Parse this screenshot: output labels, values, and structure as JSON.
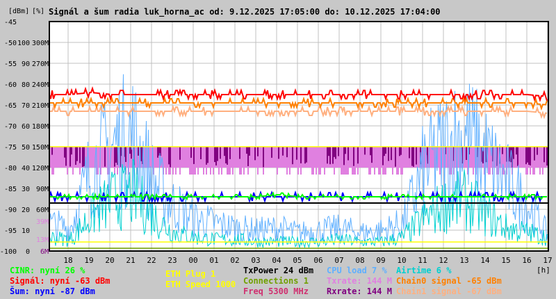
{
  "chart_data": {
    "type": "line",
    "title": "Signál a šum radia luk_horna_ac od: 9.12.2025 17:05:00 do: 10.12.2025 17:04:00",
    "y_units": [
      "[dBm]",
      "[%]"
    ],
    "y_axis_dbm": {
      "range": [
        -100,
        -45
      ],
      "ticks": [
        "-45",
        "-50",
        "-55",
        "-60",
        "-65",
        "-70",
        "-75",
        "-80",
        "-85",
        "-90",
        "-95",
        "-100"
      ]
    },
    "y_axis_percent": {
      "range": [
        0,
        100
      ],
      "ticks": [
        "100",
        "90",
        "80",
        "70",
        "60",
        "50",
        "40",
        "30",
        "20",
        "10",
        "0"
      ]
    },
    "y_axis_rate": {
      "range": [
        0,
        300
      ],
      "ticks": [
        "300M",
        "270M",
        "240M",
        "210M",
        "180M",
        "150M",
        "120M",
        "90M",
        "60M"
      ]
    },
    "rate_markers": [
      {
        "label": "39M",
        "color": "#e080e0"
      },
      {
        "label": "13M",
        "color": "#e080e0"
      },
      {
        "label": "6M",
        "color": "#800080"
      }
    ],
    "x_ticks": [
      "18",
      "19",
      "20",
      "21",
      "22",
      "23",
      "00",
      "01",
      "02",
      "03",
      "04",
      "05",
      "06",
      "07",
      "08",
      "09",
      "10",
      "11",
      "12",
      "13",
      "14",
      "15",
      "16",
      "17"
    ],
    "x_unit": "[h]",
    "grid": true,
    "series": [
      {
        "name": "Signál",
        "axis": "dbm",
        "color": "#ff0000",
        "values": [
          -62.5,
          -62.5,
          -62,
          -62.5,
          -62.5,
          -62.5,
          -62.5,
          -62.5,
          -62.5,
          -62.5,
          -62.5,
          -62.5,
          -62.5,
          -62.5,
          -62.5,
          -62.5,
          -62.5,
          -62.5,
          -62.5,
          -62.5,
          -62.5,
          -62.5,
          -62.5,
          -62.5,
          -63
        ]
      },
      {
        "name": "Chain0 signal",
        "axis": "dbm",
        "color": "#ff8000",
        "values": [
          -64.5,
          -64.5,
          -64.5,
          -64.5,
          -64.5,
          -64.5,
          -64.5,
          -64.5,
          -64.5,
          -64.5,
          -64.5,
          -64.5,
          -64.5,
          -64.5,
          -64.5,
          -64.5,
          -64.5,
          -64.5,
          -64.5,
          -64.5,
          -64.5,
          -64.5,
          -64.5,
          -64.5,
          -65
        ]
      },
      {
        "name": "Chain1 signal",
        "axis": "dbm",
        "color": "#ffb080",
        "values": [
          -66.5,
          -66.5,
          -66.5,
          -66.5,
          -66.5,
          -66.5,
          -66.5,
          -66.5,
          -66.5,
          -66.5,
          -66.5,
          -66.5,
          -66.5,
          -66.5,
          -66.5,
          -66.5,
          -66.5,
          -66.5,
          -66.5,
          -66.5,
          -66.5,
          -66.5,
          -66.5,
          -66.5,
          -67
        ]
      },
      {
        "name": "Šum",
        "axis": "dbm",
        "color": "#0000ff",
        "values": [
          -87,
          -87,
          -87,
          -87,
          -87,
          -87,
          -87,
          -87,
          -87,
          -87,
          -87,
          -87,
          -87,
          -87,
          -87,
          -87,
          -87,
          -87,
          -87,
          -87,
          -87,
          -87,
          -87,
          -87,
          -87
        ]
      },
      {
        "name": "CINR",
        "axis": "percent",
        "color": "#00ff00",
        "values": [
          26,
          26,
          26,
          26,
          26,
          26,
          26,
          26,
          26,
          26,
          26,
          27,
          26,
          26,
          26,
          26,
          26,
          26,
          26,
          26,
          26,
          26,
          26,
          26,
          26
        ]
      },
      {
        "name": "Txrate",
        "axis": "rate",
        "color": "#e080e0",
        "values": [
          144,
          130,
          144,
          130,
          144,
          144,
          144,
          144,
          144,
          144,
          144,
          144,
          144,
          144,
          144,
          144,
          144,
          144,
          144,
          144,
          144,
          144,
          144,
          144,
          144
        ]
      },
      {
        "name": "Rxrate",
        "axis": "rate",
        "color": "#800080",
        "values": [
          144,
          144,
          144,
          144,
          144,
          144,
          144,
          144,
          144,
          144,
          144,
          144,
          144,
          144,
          144,
          144,
          144,
          144,
          144,
          144,
          144,
          144,
          144,
          144,
          144
        ]
      },
      {
        "name": "CPU load",
        "axis": "percent",
        "color": "#60b0ff",
        "values": [
          12,
          10,
          35,
          45,
          50,
          30,
          20,
          14,
          12,
          10,
          9,
          10,
          8,
          9,
          10,
          8,
          9,
          12,
          35,
          45,
          50,
          40,
          30,
          20,
          7
        ]
      },
      {
        "name": "Airtime",
        "axis": "percent",
        "color": "#00d0d0",
        "values": [
          6,
          5,
          15,
          22,
          25,
          15,
          8,
          6,
          5,
          5,
          4,
          4,
          4,
          4,
          5,
          4,
          4,
          6,
          14,
          20,
          22,
          16,
          10,
          8,
          6
        ]
      }
    ],
    "reference_lines": [
      {
        "name": "ETH Speed",
        "axis": "rate",
        "value": 150,
        "color": "#ffff00"
      },
      {
        "name": "ETH Plug",
        "axis": "rate",
        "value": 13,
        "color": "#ffff00"
      },
      {
        "name": "Connections",
        "axis": "rate",
        "value": 4,
        "color": "#70a000"
      },
      {
        "name": "TxPower",
        "axis": "dbm",
        "value": -88.5,
        "color": "#000000"
      }
    ]
  },
  "legend": [
    {
      "text": "CINR: nyní 26 %",
      "color": "#00ff00"
    },
    {
      "text": "Signál: nyní -63 dBm",
      "color": "#ff0000"
    },
    {
      "text": "Šum: nyní -87 dBm",
      "color": "#0000ff"
    },
    {
      "text": "ETH Plug 1",
      "color": "#ffff00"
    },
    {
      "text": "ETH Speed 1000",
      "color": "#ffff00"
    },
    {
      "text": "TxPower 24 dBm",
      "color": "#000000"
    },
    {
      "text": "Connections 1",
      "color": "#70a000"
    },
    {
      "text": "Freq 5300 MHz",
      "color": "#d03070"
    },
    {
      "text": "CPU load 7 %",
      "color": "#60b0ff"
    },
    {
      "text": "Txrate: 144 M",
      "color": "#e080e0"
    },
    {
      "text": "Rxrate: 144 M",
      "color": "#800080"
    },
    {
      "text": "Airtime 6 %",
      "color": "#00d0d0"
    },
    {
      "text": "Chain0 signal -65 dBm",
      "color": "#ff8000"
    },
    {
      "text": "Chain1 signal -67 dBm",
      "color": "#ffb080"
    }
  ]
}
